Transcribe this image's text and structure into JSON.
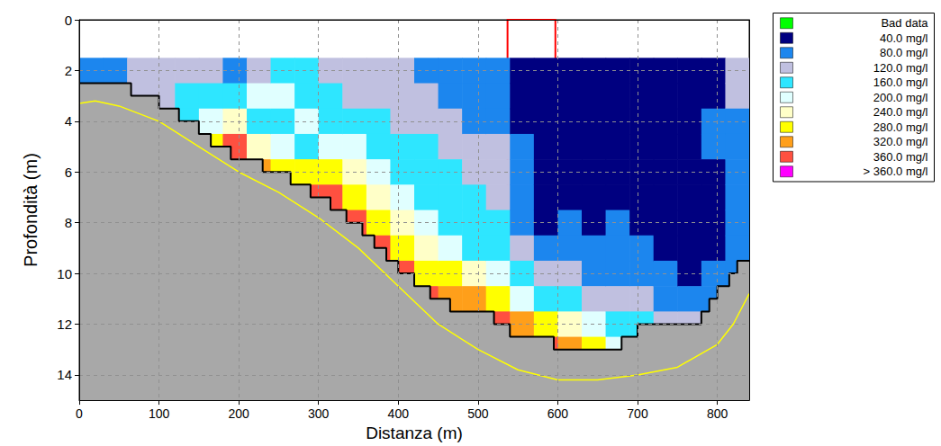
{
  "chart_data": {
    "type": "heatmap",
    "x_label": "Distanza (m)",
    "y_label": "Profondità (m)",
    "xlim": [
      0,
      840
    ],
    "xticks": [
      0,
      100,
      200,
      300,
      400,
      500,
      600,
      700,
      800
    ],
    "ylim": [
      15,
      0
    ],
    "yticks": [
      0,
      2,
      4,
      6,
      8,
      10,
      12,
      14
    ],
    "grid": true,
    "legend": "right",
    "color_levels": [
      {
        "label": "Bad data",
        "color": "#00ff00"
      },
      {
        "value": 40,
        "label": "40.0 mg/l",
        "color": "#000080"
      },
      {
        "value": 80,
        "label": "80.0 mg/l",
        "color": "#1c86ee"
      },
      {
        "value": 120,
        "label": "120.0 mg/l",
        "color": "#c0c0e0"
      },
      {
        "value": 160,
        "label": "160.0 mg/l",
        "color": "#2ee6ff"
      },
      {
        "value": 200,
        "label": "200.0 mg/l",
        "color": "#e0ffff"
      },
      {
        "value": 240,
        "label": "240.0 mg/l",
        "color": "#ffffc8"
      },
      {
        "value": 280,
        "label": "280.0 mg/l",
        "color": "#ffff00"
      },
      {
        "value": 320,
        "label": "320.0 mg/l",
        "color": "#ff9f1a"
      },
      {
        "value": 360,
        "label": "360.0 mg/l",
        "color": "#ff5040"
      },
      {
        "value": 360,
        "label": "> 360.0 mg/l",
        "color": "#ff00ff"
      }
    ],
    "cells": {
      "x_edges": [
        0,
        30,
        60,
        90,
        120,
        150,
        180,
        210,
        240,
        270,
        300,
        330,
        360,
        390,
        420,
        450,
        480,
        510,
        540,
        570,
        600,
        630,
        660,
        690,
        720,
        750,
        780,
        810,
        840
      ],
      "depth_edges": [
        1.5,
        2.5,
        3.5,
        4.5,
        5.5,
        6.5,
        7.5,
        8.5,
        9.5,
        10.5,
        11.5,
        12.5,
        13.5
      ],
      "values": [
        [
          60,
          null,
          null,
          null,
          null,
          null,
          null,
          null,
          null,
          null,
          null,
          null
        ],
        [
          60,
          null,
          null,
          null,
          null,
          null,
          null,
          null,
          null,
          null,
          null,
          null
        ],
        [
          100,
          100,
          null,
          null,
          null,
          null,
          null,
          null,
          null,
          null,
          null,
          null
        ],
        [
          100,
          100,
          140,
          null,
          null,
          null,
          null,
          null,
          null,
          null,
          null,
          null
        ],
        [
          100,
          140,
          140,
          null,
          null,
          null,
          null,
          null,
          null,
          null,
          null,
          null
        ],
        [
          100,
          140,
          180,
          260,
          null,
          null,
          null,
          null,
          null,
          null,
          null,
          null
        ],
        [
          60,
          140,
          220,
          340,
          null,
          null,
          null,
          null,
          null,
          null,
          null,
          null
        ],
        [
          100,
          180,
          140,
          220,
          300,
          null,
          null,
          null,
          null,
          null,
          null,
          null
        ],
        [
          140,
          180,
          140,
          180,
          260,
          300,
          null,
          null,
          null,
          null,
          null,
          null
        ],
        [
          140,
          140,
          180,
          140,
          260,
          340,
          null,
          null,
          null,
          null,
          null,
          null
        ],
        [
          100,
          140,
          140,
          180,
          260,
          340,
          null,
          null,
          null,
          null,
          null,
          null
        ],
        [
          100,
          100,
          140,
          180,
          220,
          260,
          340,
          null,
          null,
          null,
          null,
          null
        ],
        [
          100,
          100,
          140,
          140,
          180,
          220,
          260,
          340,
          null,
          null,
          null,
          null
        ],
        [
          100,
          100,
          100,
          140,
          140,
          180,
          220,
          260,
          340,
          null,
          null,
          null
        ],
        [
          60,
          100,
          100,
          140,
          140,
          140,
          180,
          220,
          260,
          340,
          null,
          null
        ],
        [
          60,
          60,
          100,
          100,
          140,
          140,
          140,
          180,
          260,
          300,
          null,
          null
        ],
        [
          60,
          60,
          60,
          100,
          100,
          140,
          140,
          140,
          220,
          300,
          null,
          null
        ],
        [
          60,
          60,
          60,
          100,
          100,
          100,
          140,
          140,
          180,
          260,
          340,
          null
        ],
        [
          30,
          30,
          30,
          60,
          60,
          60,
          60,
          100,
          140,
          180,
          300,
          null
        ],
        [
          30,
          30,
          30,
          30,
          30,
          30,
          30,
          60,
          100,
          140,
          260,
          340
        ],
        [
          30,
          30,
          30,
          30,
          30,
          30,
          60,
          60,
          100,
          140,
          220,
          300
        ],
        [
          30,
          30,
          30,
          30,
          30,
          30,
          30,
          60,
          60,
          100,
          180,
          260
        ],
        [
          30,
          30,
          30,
          30,
          30,
          30,
          60,
          60,
          60,
          100,
          140,
          180
        ],
        [
          30,
          30,
          30,
          30,
          30,
          30,
          30,
          60,
          60,
          100,
          140,
          null
        ],
        [
          30,
          30,
          30,
          30,
          30,
          30,
          30,
          30,
          60,
          60,
          100,
          null
        ],
        [
          30,
          30,
          30,
          30,
          30,
          30,
          30,
          30,
          30,
          60,
          100,
          null
        ],
        [
          30,
          30,
          60,
          60,
          30,
          30,
          30,
          30,
          60,
          60,
          null,
          null
        ],
        [
          100,
          100,
          60,
          60,
          60,
          60,
          60,
          60,
          60,
          null,
          null,
          null
        ]
      ]
    },
    "bed_profile": {
      "color": "#000000",
      "x": [
        0,
        65,
        100,
        125,
        150,
        165,
        190,
        230,
        265,
        290,
        315,
        335,
        355,
        370,
        385,
        400,
        420,
        440,
        465,
        520,
        540,
        595,
        680,
        700,
        780,
        790,
        800,
        815,
        825,
        840
      ],
      "y": [
        2.5,
        3.0,
        3.5,
        4.0,
        4.5,
        5.0,
        5.5,
        6.0,
        6.5,
        7.0,
        7.5,
        8.0,
        8.5,
        9.0,
        9.5,
        10.0,
        10.5,
        11.0,
        11.5,
        12.0,
        12.5,
        13.0,
        12.5,
        12.0,
        11.5,
        11.0,
        10.5,
        10.0,
        9.5,
        9.5
      ]
    },
    "sounding_line": {
      "color": "#ffff00",
      "x": [
        0,
        20,
        50,
        100,
        150,
        200,
        250,
        300,
        350,
        400,
        450,
        500,
        550,
        600,
        650,
        700,
        750,
        800,
        820,
        840
      ],
      "y": [
        3.3,
        3.2,
        3.4,
        4.0,
        5.0,
        6.0,
        6.8,
        7.8,
        9.0,
        10.5,
        12.0,
        13.0,
        13.8,
        14.2,
        14.2,
        14.0,
        13.7,
        12.8,
        12.0,
        10.8
      ]
    },
    "highlight": {
      "color": "#ff0000",
      "xlim": [
        537,
        597
      ],
      "ylim": [
        15,
        0
      ]
    }
  }
}
